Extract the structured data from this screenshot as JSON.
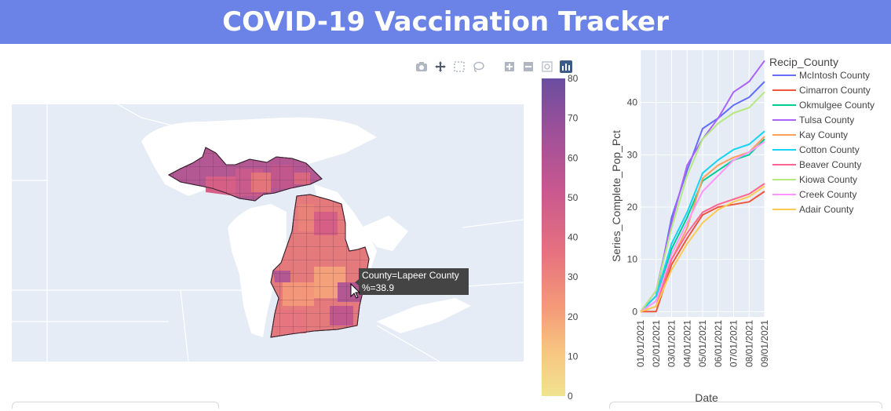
{
  "header": {
    "title": "COVID-19 Vaccination Tracker"
  },
  "modebar": {
    "icons": [
      "camera-icon",
      "pan-move-icon",
      "box-select-icon",
      "lasso-select-icon",
      "zoom-in-icon",
      "zoom-out-icon",
      "reset-view-icon",
      "plotly-logo-icon"
    ]
  },
  "map": {
    "colorbar": {
      "ticks": [
        "80",
        "70",
        "60",
        "50",
        "40",
        "30",
        "20",
        "10",
        "0"
      ],
      "colors": [
        "#6a4ea0",
        "#9a4f9a",
        "#c8588f",
        "#e6727f",
        "#f49a78",
        "#f8c581",
        "#f1e38f"
      ],
      "range": [
        0,
        80
      ]
    },
    "tooltip": {
      "line1": "County=Lapeer County",
      "line2": "%=38.9"
    },
    "colors": {
      "land": "#e5ecf6",
      "water": "#ffffff",
      "border": "#ffffff"
    }
  },
  "chart_data": {
    "type": "line",
    "title": "",
    "xlabel": "Date",
    "ylabel": "Series_Complete_Pop_Pct",
    "legend_title": "Recip_County",
    "legend_position": "right",
    "ylim": [
      -1,
      50
    ],
    "y_ticks": [
      "0",
      "10",
      "20",
      "30",
      "40"
    ],
    "x": [
      "01/01/2021",
      "02/01/2021",
      "03/01/2021",
      "04/01/2021",
      "05/01/2021",
      "06/01/2021",
      "07/01/2021",
      "08/01/2021",
      "09/01/2021"
    ],
    "x_labels": [
      "01/01/2021",
      "02/01/2021",
      "03/01/2021",
      "04/01/2021",
      "05/01/2021",
      "06/01/2021",
      "07/01/2021",
      "08/01/2021",
      "09/01/2021"
    ],
    "series": [
      {
        "name": "McIntosh County",
        "color": "#636efa",
        "values": [
          0,
          3,
          18,
          27,
          35,
          37,
          39.5,
          41,
          44
        ]
      },
      {
        "name": "Cimarron County",
        "color": "#ef553b",
        "values": [
          0,
          0,
          9,
          14,
          18.5,
          20,
          20.5,
          21,
          23
        ]
      },
      {
        "name": "Okmulgee County",
        "color": "#00cc96",
        "values": [
          0,
          2,
          12,
          18,
          25,
          27,
          29,
          30,
          33
        ]
      },
      {
        "name": "Tulsa County",
        "color": "#ab63fa",
        "values": [
          0,
          4,
          17,
          28,
          33,
          37,
          42,
          44,
          48
        ]
      },
      {
        "name": "Kay County",
        "color": "#ffa15a",
        "values": [
          0,
          2,
          10,
          16,
          25.5,
          28,
          29.5,
          30.5,
          33.5
        ]
      },
      {
        "name": "Cotton County",
        "color": "#19d3f3",
        "values": [
          0,
          3,
          13,
          19,
          26.5,
          29,
          31,
          32,
          34.5
        ]
      },
      {
        "name": "Beaver County",
        "color": "#ff6692",
        "values": [
          0,
          1,
          10,
          15,
          19,
          20.5,
          21.5,
          22.5,
          24.5
        ]
      },
      {
        "name": "Kiowa County",
        "color": "#b6e880",
        "values": [
          0,
          4,
          16,
          26,
          33,
          36,
          38,
          39,
          42
        ]
      },
      {
        "name": "Creek County",
        "color": "#ff97ff",
        "values": [
          0,
          2,
          11,
          17,
          23,
          26,
          29,
          30.5,
          32.5
        ]
      },
      {
        "name": "Adair County",
        "color": "#fecb52",
        "values": [
          0,
          1,
          8,
          13,
          17,
          19.5,
          21,
          22,
          24
        ]
      }
    ]
  }
}
